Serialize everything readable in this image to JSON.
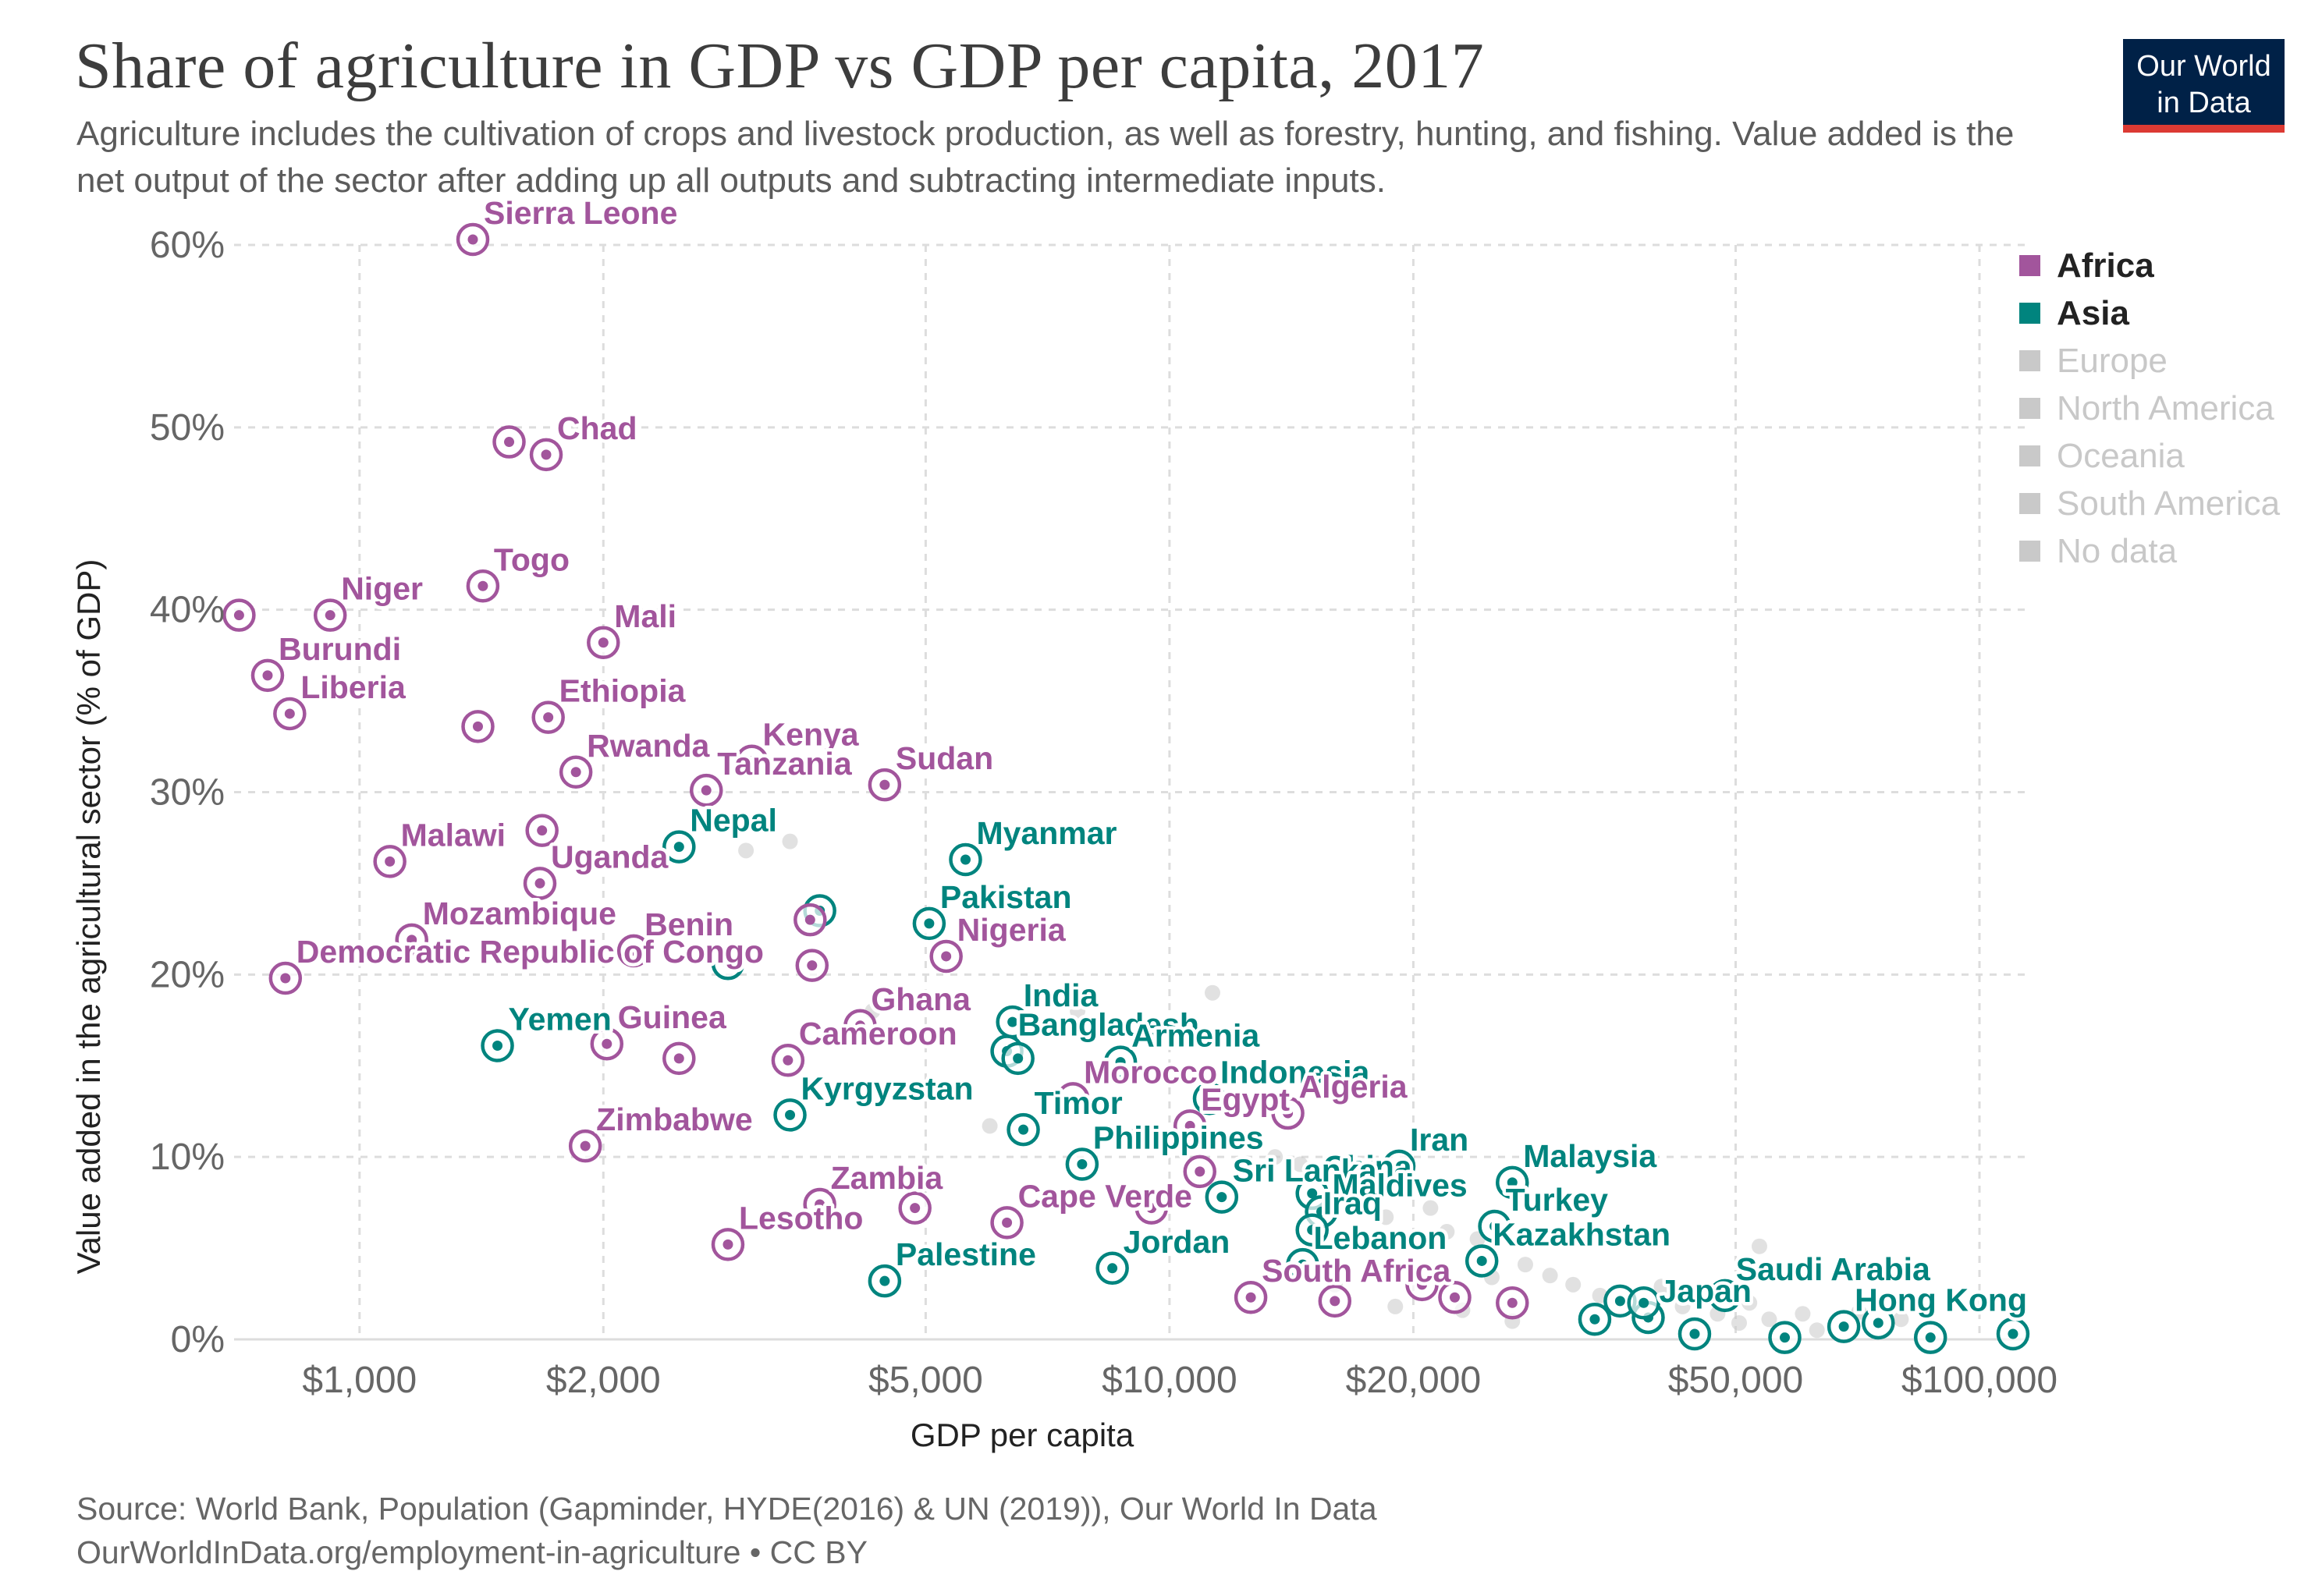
{
  "header": {
    "title": "Share of agriculture in GDP vs GDP per capita, 2017",
    "subtitle": "Agriculture includes the cultivation of crops and livestock production, as well as forestry, hunting, and fishing. Value added is the net output of the sector after adding up all outputs and subtracting intermediate inputs.",
    "logo_line1": "Our World",
    "logo_line2": "in Data"
  },
  "footer": {
    "source": "Source: World Bank, Population (Gapminder, HYDE(2016) & UN (2019)), Our World In Data",
    "link": "OurWorldInData.org/employment-in-agriculture • CC BY"
  },
  "colors": {
    "Africa": "#a2559c",
    "Asia": "#00847e",
    "inactive": "#c9c9c9",
    "grid": "#dddddd",
    "logo_bg": "#002147",
    "logo_bar": "#dc3a33"
  },
  "legend": [
    {
      "label": "Africa",
      "active": true
    },
    {
      "label": "Asia",
      "active": true
    },
    {
      "label": "Europe",
      "active": false
    },
    {
      "label": "North America",
      "active": false
    },
    {
      "label": "Oceania",
      "active": false
    },
    {
      "label": "South America",
      "active": false
    },
    {
      "label": "No data",
      "active": false
    }
  ],
  "chart_data": {
    "type": "scatter",
    "title": "Share of agriculture in GDP vs GDP per capita, 2017",
    "xlabel": "GDP per capita",
    "ylabel": "Value added in the agricultural sector (% of GDP)",
    "x_scale": "log",
    "xlim": [
      700,
      115000
    ],
    "ylim": [
      0,
      60
    ],
    "x_ticks": [
      {
        "value": 1000,
        "label": "$1,000"
      },
      {
        "value": 2000,
        "label": "$2,000"
      },
      {
        "value": 5000,
        "label": "$5,000"
      },
      {
        "value": 10000,
        "label": "$10,000"
      },
      {
        "value": 20000,
        "label": "$20,000"
      },
      {
        "value": 50000,
        "label": "$50,000"
      },
      {
        "value": 100000,
        "label": "$100,000"
      }
    ],
    "y_ticks": [
      {
        "value": 0,
        "label": "0%"
      },
      {
        "value": 10,
        "label": "10%"
      },
      {
        "value": 20,
        "label": "20%"
      },
      {
        "value": 30,
        "label": "30%"
      },
      {
        "value": 40,
        "label": "40%"
      },
      {
        "value": 50,
        "label": "50%"
      },
      {
        "value": 60,
        "label": "60%"
      }
    ],
    "grid": true,
    "legend_position": "right",
    "series": [
      {
        "name": "Africa",
        "color": "#a2559c",
        "points": [
          {
            "label": "Sierra Leone",
            "x": 1380,
            "y": 60.3
          },
          {
            "label": "Chad",
            "x": 1700,
            "y": 48.5
          },
          {
            "label": "",
            "x": 1530,
            "y": 49.2
          },
          {
            "label": "Togo",
            "x": 1420,
            "y": 41.3
          },
          {
            "label": "Niger",
            "x": 920,
            "y": 39.7
          },
          {
            "label": "",
            "x": 710,
            "y": 39.7
          },
          {
            "label": "Mali",
            "x": 2000,
            "y": 38.2
          },
          {
            "label": "Burundi",
            "x": 770,
            "y": 36.4
          },
          {
            "label": "Liberia",
            "x": 820,
            "y": 34.3
          },
          {
            "label": "Ethiopia",
            "x": 1710,
            "y": 34.1
          },
          {
            "label": "",
            "x": 1400,
            "y": 33.6
          },
          {
            "label": "Rwanda",
            "x": 1850,
            "y": 31.1
          },
          {
            "label": "Kenya",
            "x": 3050,
            "y": 31.7
          },
          {
            "label": "Tanzania",
            "x": 2680,
            "y": 30.1
          },
          {
            "label": "Sudan",
            "x": 4450,
            "y": 30.4
          },
          {
            "label": "",
            "x": 1680,
            "y": 27.9
          },
          {
            "label": "Malawi",
            "x": 1090,
            "y": 26.2
          },
          {
            "label": "Uganda",
            "x": 1670,
            "y": 25.0
          },
          {
            "label": "",
            "x": 3600,
            "y": 23.0
          },
          {
            "label": "Benin",
            "x": 2180,
            "y": 21.3
          },
          {
            "label": "Mozambique",
            "x": 1160,
            "y": 21.9
          },
          {
            "label": "Nigeria",
            "x": 5300,
            "y": 21.0
          },
          {
            "label": "Democratic Republic of Congo",
            "x": 810,
            "y": 19.8
          },
          {
            "label": "",
            "x": 3620,
            "y": 20.5
          },
          {
            "label": "Ghana",
            "x": 4150,
            "y": 17.2
          },
          {
            "label": "Guinea",
            "x": 2020,
            "y": 16.2
          },
          {
            "label": "",
            "x": 2480,
            "y": 15.4
          },
          {
            "label": "Cameroon",
            "x": 3380,
            "y": 15.3
          },
          {
            "label": "Morocco",
            "x": 7600,
            "y": 13.2
          },
          {
            "label": "Egypt",
            "x": 10600,
            "y": 11.7
          },
          {
            "label": "Algeria",
            "x": 14000,
            "y": 12.4
          },
          {
            "label": "Zimbabwe",
            "x": 1900,
            "y": 10.6
          },
          {
            "label": "",
            "x": 10900,
            "y": 9.2
          },
          {
            "label": "Zambia",
            "x": 3700,
            "y": 7.4
          },
          {
            "label": "",
            "x": 4850,
            "y": 7.2
          },
          {
            "label": "Cape Verde",
            "x": 6300,
            "y": 6.4
          },
          {
            "label": "",
            "x": 9500,
            "y": 7.2
          },
          {
            "label": "Lesotho",
            "x": 2850,
            "y": 5.2
          },
          {
            "label": "South Africa",
            "x": 12600,
            "y": 2.3
          },
          {
            "label": "",
            "x": 16000,
            "y": 2.1
          },
          {
            "label": "",
            "x": 20500,
            "y": 3.0
          },
          {
            "label": "",
            "x": 22500,
            "y": 2.3
          },
          {
            "label": "",
            "x": 26500,
            "y": 2.0
          }
        ]
      },
      {
        "name": "Asia",
        "color": "#00847e",
        "points": [
          {
            "label": "Nepal",
            "x": 2480,
            "y": 27.0
          },
          {
            "label": "Myanmar",
            "x": 5600,
            "y": 26.3
          },
          {
            "label": "",
            "x": 3700,
            "y": 23.5
          },
          {
            "label": "Pakistan",
            "x": 5050,
            "y": 22.8
          },
          {
            "label": "",
            "x": 2850,
            "y": 20.6
          },
          {
            "label": "Yemen",
            "x": 1480,
            "y": 16.1
          },
          {
            "label": "India",
            "x": 6400,
            "y": 17.4
          },
          {
            "label": "Bangladesh",
            "x": 6300,
            "y": 15.8
          },
          {
            "label": "",
            "x": 6500,
            "y": 15.4
          },
          {
            "label": "Armenia",
            "x": 8700,
            "y": 15.2
          },
          {
            "label": "Indonesia",
            "x": 11200,
            "y": 13.2
          },
          {
            "label": "Kyrgyzstan",
            "x": 3400,
            "y": 12.3
          },
          {
            "label": "Timor",
            "x": 6600,
            "y": 11.5
          },
          {
            "label": "Philippines",
            "x": 7800,
            "y": 9.6
          },
          {
            "label": "Iran",
            "x": 19200,
            "y": 9.5
          },
          {
            "label": "China",
            "x": 15000,
            "y": 8.0
          },
          {
            "label": "Sri Lanka",
            "x": 11600,
            "y": 7.8
          },
          {
            "label": "Malaysia",
            "x": 26500,
            "y": 8.6
          },
          {
            "label": "Maldives",
            "x": 15400,
            "y": 7.0
          },
          {
            "label": "Turkey",
            "x": 25200,
            "y": 6.2
          },
          {
            "label": "Iraq",
            "x": 15000,
            "y": 6.0
          },
          {
            "label": "Kazakhstan",
            "x": 24300,
            "y": 4.3
          },
          {
            "label": "Jordan",
            "x": 8500,
            "y": 3.9
          },
          {
            "label": "Lebanon",
            "x": 14600,
            "y": 4.1
          },
          {
            "label": "Palestine",
            "x": 4450,
            "y": 3.2
          },
          {
            "label": "Saudi Arabia",
            "x": 48500,
            "y": 2.4
          },
          {
            "label": "Japan",
            "x": 39000,
            "y": 1.2
          },
          {
            "label": "",
            "x": 33500,
            "y": 1.1
          },
          {
            "label": "",
            "x": 36000,
            "y": 2.1
          },
          {
            "label": "",
            "x": 38500,
            "y": 2.0
          },
          {
            "label": "",
            "x": 44500,
            "y": 0.3
          },
          {
            "label": "Hong Kong",
            "x": 68000,
            "y": 0.7
          },
          {
            "label": "",
            "x": 57500,
            "y": 0.1
          },
          {
            "label": "",
            "x": 75000,
            "y": 0.9
          },
          {
            "label": "",
            "x": 87000,
            "y": 0.1
          },
          {
            "label": "",
            "x": 110000,
            "y": 0.3
          }
        ]
      },
      {
        "name": "Other",
        "color": "#c9c9c9",
        "points": [
          {
            "label": "",
            "x": 3000,
            "y": 26.8
          },
          {
            "label": "",
            "x": 3400,
            "y": 27.3
          },
          {
            "label": "",
            "x": 4300,
            "y": 18.0
          },
          {
            "label": "",
            "x": 7700,
            "y": 18.0
          },
          {
            "label": "",
            "x": 11300,
            "y": 19.0
          },
          {
            "label": "",
            "x": 6000,
            "y": 11.7
          },
          {
            "label": "",
            "x": 9000,
            "y": 11.1
          },
          {
            "label": "",
            "x": 12500,
            "y": 11.0
          },
          {
            "label": "",
            "x": 13500,
            "y": 10.0
          },
          {
            "label": "",
            "x": 14500,
            "y": 9.6
          },
          {
            "label": "",
            "x": 17500,
            "y": 8.6
          },
          {
            "label": "",
            "x": 18500,
            "y": 6.7
          },
          {
            "label": "",
            "x": 21000,
            "y": 7.2
          },
          {
            "label": "",
            "x": 22000,
            "y": 5.9
          },
          {
            "label": "",
            "x": 24000,
            "y": 5.5
          },
          {
            "label": "",
            "x": 27500,
            "y": 4.1
          },
          {
            "label": "",
            "x": 29500,
            "y": 3.5
          },
          {
            "label": "",
            "x": 31500,
            "y": 3.0
          },
          {
            "label": "",
            "x": 34000,
            "y": 2.4
          },
          {
            "label": "",
            "x": 40500,
            "y": 2.9
          },
          {
            "label": "",
            "x": 43000,
            "y": 1.8
          },
          {
            "label": "",
            "x": 46000,
            "y": 2.6
          },
          {
            "label": "",
            "x": 47500,
            "y": 1.4
          },
          {
            "label": "",
            "x": 50500,
            "y": 0.9
          },
          {
            "label": "",
            "x": 52000,
            "y": 2.0
          },
          {
            "label": "",
            "x": 53500,
            "y": 5.1
          },
          {
            "label": "",
            "x": 55000,
            "y": 1.1
          },
          {
            "label": "",
            "x": 60500,
            "y": 1.4
          },
          {
            "label": "",
            "x": 63000,
            "y": 0.5
          },
          {
            "label": "",
            "x": 71000,
            "y": 1.5
          },
          {
            "label": "",
            "x": 80000,
            "y": 1.1
          },
          {
            "label": "",
            "x": 23000,
            "y": 1.6
          },
          {
            "label": "",
            "x": 25000,
            "y": 3.4
          },
          {
            "label": "",
            "x": 26500,
            "y": 1.0
          },
          {
            "label": "",
            "x": 19000,
            "y": 1.8
          },
          {
            "label": "",
            "x": 16000,
            "y": 3.0
          }
        ]
      }
    ]
  }
}
